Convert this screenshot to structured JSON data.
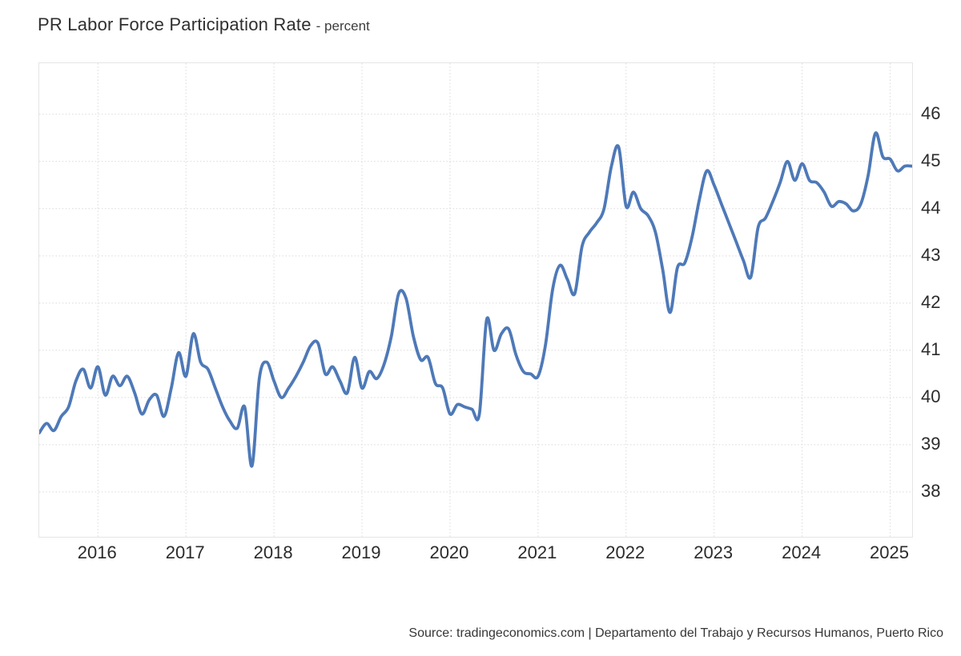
{
  "header": {
    "title": "PR Labor Force Participation Rate",
    "subtitle": "- percent"
  },
  "footer": {
    "source_text": "Source: tradingeconomics.com | Departamento del Trabajo y Recursos Humanos, Puerto Rico"
  },
  "colors": {
    "line": "#4e79b8",
    "grid": "#d9d9d9",
    "plot_border": "#e5e5e5",
    "tick_text": "#2b2b2b",
    "background": "#ffffff"
  },
  "chart_data": {
    "type": "line",
    "title": "PR Labor Force Participation Rate",
    "ylabel": "percent",
    "xlabel": "",
    "grid": "dotted",
    "legend": "none",
    "x_start": "2015-05",
    "x_end": "2025-04",
    "frequency": "monthly",
    "x_tick_labels": [
      "2016",
      "2017",
      "2018",
      "2019",
      "2020",
      "2021",
      "2022",
      "2023",
      "2024",
      "2025"
    ],
    "y_ticks": [
      38,
      39,
      40,
      41,
      42,
      43,
      44,
      45,
      46
    ],
    "ylim": [
      37.05,
      47.08
    ],
    "series": [
      {
        "name": "PR Labor Force Participation Rate",
        "values": [
          39.25,
          39.45,
          39.3,
          39.6,
          39.8,
          40.35,
          40.6,
          40.2,
          40.65,
          40.05,
          40.45,
          40.25,
          40.45,
          40.1,
          39.65,
          39.95,
          40.05,
          39.6,
          40.2,
          40.95,
          40.45,
          41.35,
          40.75,
          40.6,
          40.2,
          39.8,
          39.5,
          39.35,
          39.8,
          38.55,
          40.4,
          40.75,
          40.35,
          40.0,
          40.2,
          40.45,
          40.75,
          41.1,
          41.15,
          40.5,
          40.65,
          40.35,
          40.1,
          40.85,
          40.2,
          40.55,
          40.4,
          40.7,
          41.3,
          42.2,
          42.1,
          41.3,
          40.8,
          40.85,
          40.3,
          40.2,
          39.65,
          39.85,
          39.8,
          39.75,
          39.65,
          41.65,
          41.0,
          41.35,
          41.45,
          40.9,
          40.55,
          40.5,
          40.45,
          41.1,
          42.3,
          42.8,
          42.5,
          42.2,
          43.2,
          43.5,
          43.7,
          44.0,
          44.9,
          45.3,
          44.05,
          44.35,
          44.0,
          43.85,
          43.5,
          42.7,
          41.8,
          42.75,
          42.85,
          43.4,
          44.2,
          44.8,
          44.5,
          44.1,
          43.7,
          43.3,
          42.9,
          42.55,
          43.6,
          43.8,
          44.15,
          44.55,
          45.0,
          44.6,
          44.95,
          44.6,
          44.55,
          44.35,
          44.05,
          44.15,
          44.1,
          43.95,
          44.1,
          44.7,
          45.6,
          45.1,
          45.05,
          44.8,
          44.9,
          44.9
        ]
      }
    ]
  }
}
